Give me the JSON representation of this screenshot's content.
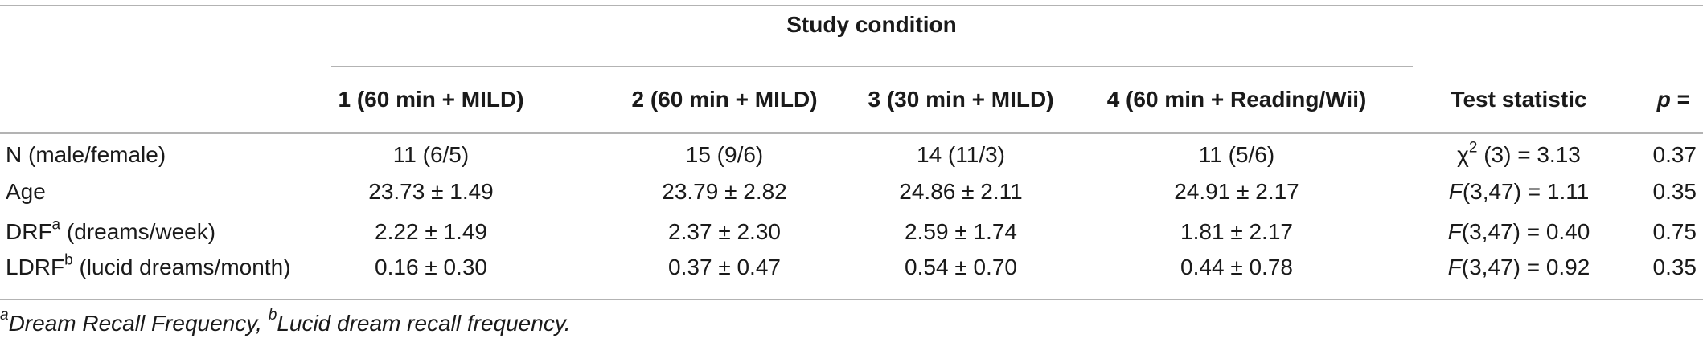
{
  "table": {
    "group_header": "Study condition",
    "columns": {
      "c1": "1 (60 min + MILD)",
      "c2": "2 (60 min + MILD)",
      "c3": "3 (30 min + MILD)",
      "c4": "4 (60 min + Reading/Wii)",
      "test": "Test statistic",
      "p_letter": "p",
      "p_eq": " ="
    },
    "rows": [
      {
        "label": "N (male/female)",
        "c1": "11 (6/5)",
        "c2": "15 (9/6)",
        "c3": "14 (11/3)",
        "c4": "11 (5/6)",
        "test_pre": "χ",
        "test_sup": "2",
        "test_post": " (3) = 3.13",
        "p": "0.37"
      },
      {
        "label": "Age",
        "c1": "23.73 ± 1.49",
        "c2": "23.79 ± 2.82",
        "c3": "24.86 ± 2.11",
        "c4": "24.91 ± 2.17",
        "test_f": "F",
        "test_post": "(3,47) = 1.11",
        "p": "0.35"
      },
      {
        "label_main": "DRF",
        "label_sup": "a",
        "label_rest": " (dreams/week)",
        "c1": "2.22 ± 1.49",
        "c2": "2.37 ± 2.30",
        "c3": "2.59 ± 1.74",
        "c4": "1.81 ± 2.17",
        "test_f": "F",
        "test_post": "(3,47) = 0.40",
        "p": "0.75"
      },
      {
        "label_main": "LDRF",
        "label_sup": "b",
        "label_rest": " (lucid dreams/month)",
        "c1": "0.16 ± 0.30",
        "c2": "0.37 ± 0.47",
        "c3": "0.54 ± 0.70",
        "c4": "0.44 ± 0.78",
        "test_f": "F",
        "test_post": "(3,47) = 0.92",
        "p": "0.35"
      }
    ]
  },
  "footnote": {
    "a_mark": "a",
    "a_text": "Dream Recall Frequency, ",
    "b_mark": "b",
    "b_text": "Lucid dream recall frequency."
  }
}
